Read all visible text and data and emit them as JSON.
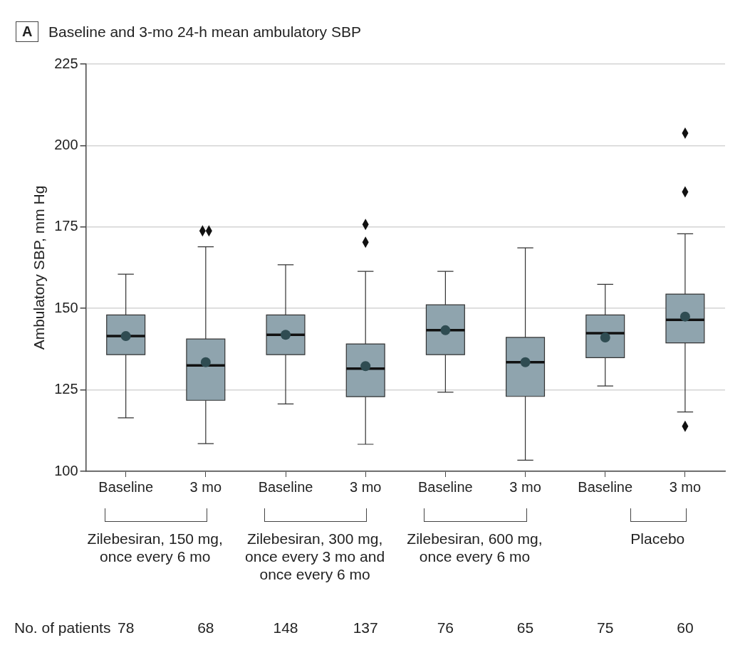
{
  "chart_data": {
    "type": "box",
    "title": "Baseline and 3-mo 24-h mean ambulatory SBP",
    "ylabel": "Ambulatory SBP, mm Hg",
    "categories": [
      "Baseline",
      "3 mo",
      "Baseline",
      "3 mo",
      "Baseline",
      "3 mo",
      "Baseline",
      "3 mo"
    ],
    "color": "#8fa4ae",
    "ylim": [
      100,
      225
    ],
    "yticks": [
      100,
      125,
      150,
      175,
      200,
      225
    ],
    "grid": "y",
    "boxes": [
      {
        "low": 116.4,
        "q1": 135.8,
        "median": 141.5,
        "q3": 148.0,
        "high": 160.5,
        "mean": 141.5
      },
      {
        "low": 108.5,
        "q1": 121.8,
        "median": 132.5,
        "q3": 140.6,
        "high": 168.9,
        "mean": 133.5,
        "outliers": [
          173.8,
          173.8
        ]
      },
      {
        "low": 120.7,
        "q1": 135.8,
        "median": 141.9,
        "q3": 148.0,
        "high": 163.4,
        "mean": 141.9
      },
      {
        "low": 108.3,
        "q1": 122.9,
        "median": 131.5,
        "q3": 139.1,
        "high": 161.4,
        "mean": 132.3,
        "outliers": [
          175.8,
          170.3
        ]
      },
      {
        "low": 124.3,
        "q1": 135.8,
        "median": 143.3,
        "q3": 151.1,
        "high": 161.4,
        "mean": 143.3
      },
      {
        "low": 103.4,
        "q1": 123.0,
        "median": 133.5,
        "q3": 141.1,
        "high": 168.6,
        "mean": 133.5
      },
      {
        "low": 126.2,
        "q1": 134.9,
        "median": 142.4,
        "q3": 148.0,
        "high": 157.4,
        "mean": 141.1
      },
      {
        "low": 118.2,
        "q1": 139.4,
        "median": 146.5,
        "q3": 154.4,
        "high": 172.9,
        "mean": 147.5,
        "outliers": [
          203.8,
          185.8,
          113.8
        ]
      }
    ],
    "annotations": [
      "A",
      "Zilebesiran, 150 mg, once every 6 mo",
      "Zilebesiran, 300 mg, once every 3 mo and once every 6 mo",
      "Zilebesiran, 600 mg, once every 6 mo",
      "Placebo",
      "No. of patients",
      "78",
      "68",
      "148",
      "137",
      "76",
      "65",
      "75",
      "60"
    ]
  }
}
